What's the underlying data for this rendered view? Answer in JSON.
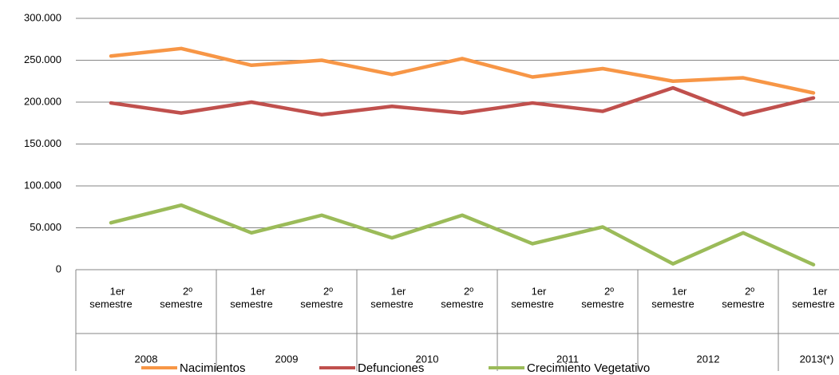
{
  "chart_data": {
    "type": "line",
    "categories": [
      [
        "1er",
        "semestre"
      ],
      [
        "2º",
        "semestre"
      ],
      [
        "1er",
        "semestre"
      ],
      [
        "2º",
        "semestre"
      ],
      [
        "1er",
        "semestre"
      ],
      [
        "2º",
        "semestre"
      ],
      [
        "1er",
        "semestre"
      ],
      [
        "2º",
        "semestre"
      ],
      [
        "1er",
        "semestre"
      ],
      [
        "2º",
        "semestre"
      ],
      [
        "1er",
        "semestre"
      ]
    ],
    "groups": [
      "2008",
      "2009",
      "2010",
      "2011",
      "2012",
      "2013(*)"
    ],
    "series": [
      {
        "name": "Nacimientos",
        "color": "#f79646",
        "values": [
          255000,
          264000,
          244000,
          250000,
          233000,
          252000,
          230000,
          240000,
          225000,
          229000,
          211000
        ]
      },
      {
        "name": "Defunciones",
        "color": "#c0504d",
        "values": [
          199000,
          187000,
          200000,
          185000,
          195000,
          187000,
          199000,
          189000,
          217000,
          185000,
          205000
        ]
      },
      {
        "name": "Crecimiento Vegetativo",
        "color": "#9bbb59",
        "values": [
          56000,
          77000,
          44000,
          65000,
          38000,
          65000,
          31000,
          51000,
          7000,
          44000,
          6000
        ]
      }
    ],
    "ylim": [
      0,
      300000
    ],
    "yticks": [
      0,
      {
        "value": 50000,
        "label": "50.000"
      },
      {
        "value": 100000,
        "label": "100.000"
      },
      {
        "value": 150000,
        "label": "150.000"
      },
      {
        "value": 200000,
        "label": "200.000"
      },
      {
        "value": 250000,
        "label": "250.000"
      },
      {
        "value": 300000,
        "label": "300.000"
      }
    ],
    "grid": true,
    "legend": "bottom"
  }
}
